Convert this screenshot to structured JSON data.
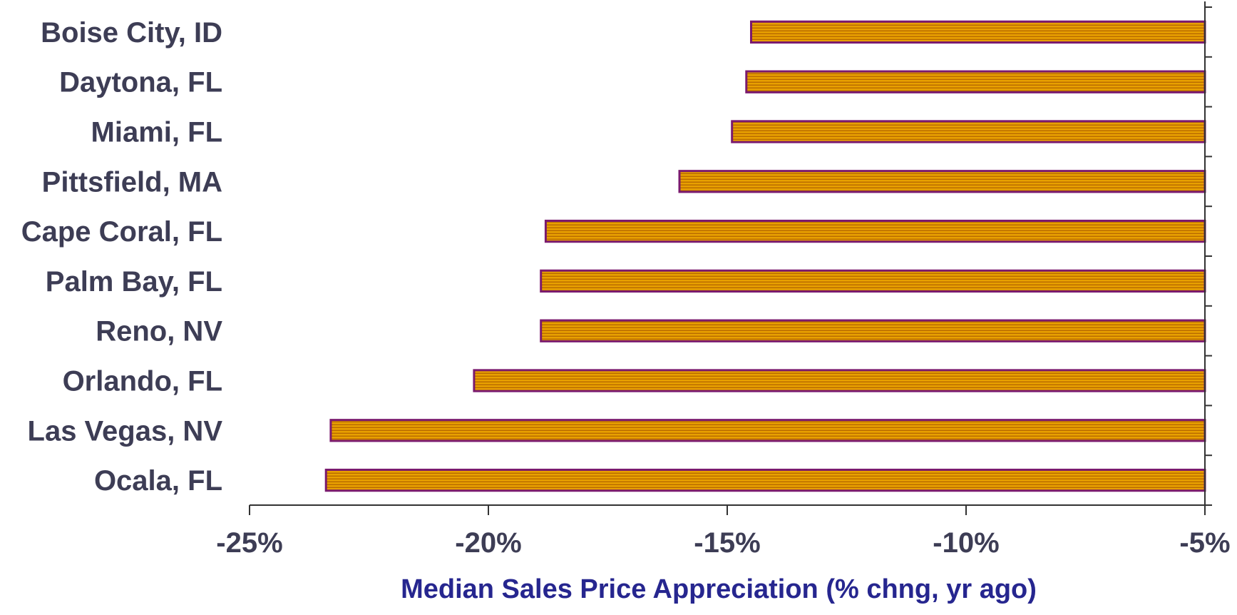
{
  "chart_data": {
    "type": "bar",
    "orientation": "horizontal",
    "categories": [
      "Boise City, ID",
      "Daytona, FL",
      "Miami, FL",
      "Pittsfield, MA",
      "Cape Coral, FL",
      "Palm Bay, FL",
      "Reno, NV",
      "Orlando, FL",
      "Las Vegas, NV",
      "Ocala, FL"
    ],
    "values": [
      -14.5,
      -14.6,
      -14.9,
      -16.0,
      -18.8,
      -18.9,
      -18.9,
      -20.3,
      -23.3,
      -23.4
    ],
    "xlabel": "Median Sales Price Appreciation (% chng, yr ago)",
    "ylabel": "",
    "xlim": [
      -25,
      -5
    ],
    "xticks": [
      -25,
      -20,
      -15,
      -10,
      -5
    ],
    "xtick_labels": [
      "-25%",
      "-20%",
      "-15%",
      "-10%",
      "-5%"
    ],
    "grid": false,
    "legend": "none",
    "colors": {
      "bar_fill": "#e8a000",
      "bar_stripe": "#b86a00",
      "bar_outline": "#7a1a6e",
      "axis": "#333333",
      "category_text": "#3d3d55",
      "tick_text": "#3d3d55",
      "axis_title": "#26268f"
    }
  }
}
